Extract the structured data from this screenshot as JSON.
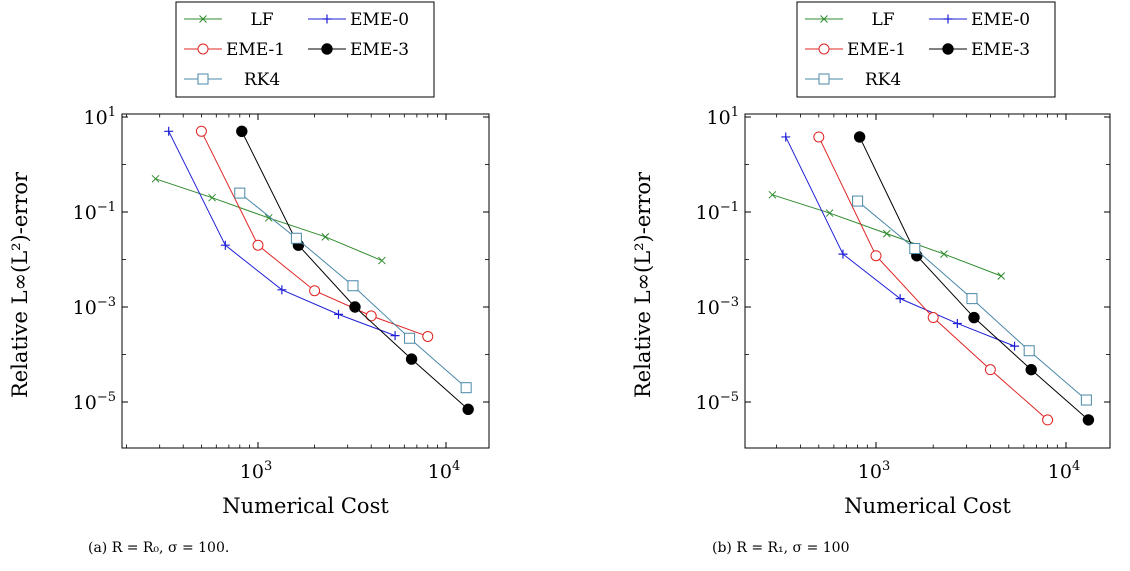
{
  "colors": {
    "LF": "#2e8b2e",
    "EME-0": "#1f1fd6",
    "EME-1": "#e02424",
    "EME-3": "#000000",
    "RK4": "#4a88a8"
  },
  "chart_data": [
    {
      "type": "line",
      "log_x": true,
      "log_y": true,
      "caption": "(a) R = R₀, σ = 100.",
      "xlabel": "Numerical Cost",
      "ylabel": "Relative L∞(L²)-error",
      "xlim": [
        200,
        16000
      ],
      "ylim": [
        1e-07,
        10
      ],
      "x_ticks": [
        1000,
        10000
      ],
      "y_ticks": [
        10,
        0.1,
        0.001,
        1e-05
      ],
      "x_tick_labels": [
        {
          "base": "10",
          "exp": "3"
        },
        {
          "base": "10",
          "exp": "4"
        }
      ],
      "y_tick_labels": [
        {
          "base": "10",
          "exp": "1"
        },
        {
          "base": "10",
          "exp": "−1"
        },
        {
          "base": "10",
          "exp": "−3"
        },
        {
          "base": "10",
          "exp": "−5"
        }
      ],
      "legend_position": "top",
      "series": [
        {
          "name": "LF",
          "marker": "x",
          "x": [
            285,
            570,
            1140,
            2280,
            4560
          ],
          "y": [
            0.5,
            0.2,
            0.075,
            0.03,
            0.0095
          ]
        },
        {
          "name": "EME-0",
          "marker": "plus",
          "x": [
            335,
            670,
            1340,
            2680,
            5360
          ],
          "y": [
            5,
            0.02,
            0.0023,
            0.0007,
            0.00025
          ]
        },
        {
          "name": "EME-1",
          "marker": "circle-open",
          "x": [
            500,
            1000,
            2000,
            4000,
            8000
          ],
          "y": [
            5,
            0.02,
            0.0022,
            0.00065,
            0.00024
          ]
        },
        {
          "name": "EME-3",
          "marker": "circle-filled",
          "x": [
            820,
            1640,
            3280,
            6560,
            13120
          ],
          "y": [
            5,
            0.02,
            0.001,
            8e-05,
            7e-06
          ]
        },
        {
          "name": "RK4",
          "marker": "square-open",
          "x": [
            800,
            1600,
            3200,
            6400,
            12800
          ],
          "y": [
            0.25,
            0.028,
            0.0028,
            0.00022,
            2e-05
          ]
        }
      ]
    },
    {
      "type": "line",
      "log_x": true,
      "log_y": true,
      "caption": "(b) R = R₁, σ = 100",
      "xlabel": "Numerical Cost",
      "ylabel": "Relative L∞(L²)-error",
      "xlim": [
        200,
        16000
      ],
      "ylim": [
        1e-07,
        10
      ],
      "x_ticks": [
        1000,
        10000
      ],
      "y_ticks": [
        10,
        0.1,
        0.001,
        1e-05
      ],
      "x_tick_labels": [
        {
          "base": "10",
          "exp": "3"
        },
        {
          "base": "10",
          "exp": "4"
        }
      ],
      "y_tick_labels": [
        {
          "base": "10",
          "exp": "1"
        },
        {
          "base": "10",
          "exp": "−1"
        },
        {
          "base": "10",
          "exp": "−3"
        },
        {
          "base": "10",
          "exp": "−5"
        }
      ],
      "legend_position": "top",
      "series": [
        {
          "name": "LF",
          "marker": "x",
          "x": [
            285,
            570,
            1140,
            2280,
            4560
          ],
          "y": [
            0.23,
            0.095,
            0.035,
            0.013,
            0.0045
          ]
        },
        {
          "name": "EME-0",
          "marker": "plus",
          "x": [
            335,
            670,
            1340,
            2680,
            5360
          ],
          "y": [
            3.8,
            0.013,
            0.0015,
            0.00045,
            0.00015
          ]
        },
        {
          "name": "EME-1",
          "marker": "circle-open",
          "x": [
            500,
            1000,
            2000,
            4000,
            8000
          ],
          "y": [
            3.8,
            0.012,
            0.0006,
            4.8e-05,
            4.2e-06
          ]
        },
        {
          "name": "EME-3",
          "marker": "circle-filled",
          "x": [
            820,
            1640,
            3280,
            6560,
            13120
          ],
          "y": [
            3.8,
            0.012,
            0.0006,
            4.8e-05,
            4.2e-06
          ]
        },
        {
          "name": "RK4",
          "marker": "square-open",
          "x": [
            800,
            1600,
            3200,
            6400,
            12800
          ],
          "y": [
            0.17,
            0.017,
            0.0015,
            0.00012,
            1.1e-05
          ]
        }
      ]
    }
  ]
}
